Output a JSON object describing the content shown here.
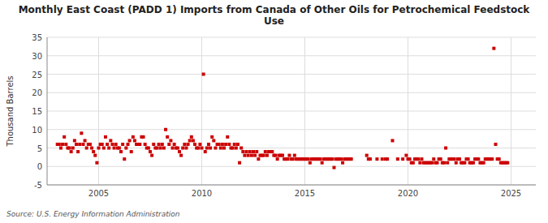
{
  "chart_data": {
    "type": "scatter",
    "title": "Monthly East Coast (PADD 1) Imports from Canada of Other Oils for Petrochemical Feedstock\nUse",
    "ylabel": "Thousand Barrels",
    "source": "Source: U.S. Energy Information Administration",
    "color": "#cc0000",
    "marker": "square",
    "grid": true,
    "xlim": [
      2002.5,
      2026.2
    ],
    "xticks": [
      2005,
      2010,
      2015,
      2020,
      2025
    ],
    "ylim": [
      -5,
      35
    ],
    "yticks": [
      -5,
      0,
      5,
      10,
      15,
      20,
      25,
      30,
      35
    ],
    "x": [
      2003.0,
      2003.083,
      2003.167,
      2003.25,
      2003.333,
      2003.417,
      2003.5,
      2003.583,
      2003.667,
      2003.75,
      2003.833,
      2003.917,
      2004.0,
      2004.083,
      2004.167,
      2004.25,
      2004.333,
      2004.417,
      2004.5,
      2004.583,
      2004.667,
      2004.75,
      2004.833,
      2004.917,
      2005.0,
      2005.083,
      2005.167,
      2005.25,
      2005.333,
      2005.417,
      2005.5,
      2005.583,
      2005.667,
      2005.75,
      2005.833,
      2005.917,
      2006.0,
      2006.083,
      2006.167,
      2006.25,
      2006.333,
      2006.417,
      2006.5,
      2006.583,
      2006.667,
      2006.75,
      2006.833,
      2006.917,
      2007.0,
      2007.083,
      2007.167,
      2007.25,
      2007.333,
      2007.417,
      2007.5,
      2007.583,
      2007.667,
      2007.75,
      2007.833,
      2007.917,
      2008.0,
      2008.083,
      2008.167,
      2008.25,
      2008.333,
      2008.417,
      2008.5,
      2008.583,
      2008.667,
      2008.75,
      2008.833,
      2008.917,
      2009.0,
      2009.083,
      2009.167,
      2009.25,
      2009.333,
      2009.417,
      2009.5,
      2009.583,
      2009.667,
      2009.75,
      2009.833,
      2009.917,
      2010.0,
      2010.083,
      2010.167,
      2010.25,
      2010.333,
      2010.417,
      2010.5,
      2010.583,
      2010.667,
      2010.75,
      2010.833,
      2010.917,
      2011.0,
      2011.083,
      2011.167,
      2011.25,
      2011.333,
      2011.417,
      2011.5,
      2011.583,
      2011.667,
      2011.75,
      2011.833,
      2011.917,
      2012.0,
      2012.083,
      2012.167,
      2012.25,
      2012.333,
      2012.417,
      2012.5,
      2012.583,
      2012.667,
      2012.75,
      2012.833,
      2012.917,
      2013.0,
      2013.083,
      2013.167,
      2013.25,
      2013.333,
      2013.417,
      2013.5,
      2013.583,
      2013.667,
      2013.75,
      2013.833,
      2013.917,
      2014.0,
      2014.083,
      2014.167,
      2014.25,
      2014.333,
      2014.417,
      2014.5,
      2014.583,
      2014.667,
      2014.75,
      2014.833,
      2014.917,
      2015.0,
      2015.083,
      2015.167,
      2015.25,
      2015.333,
      2015.417,
      2015.5,
      2015.583,
      2015.667,
      2015.75,
      2015.833,
      2015.917,
      2016.0,
      2016.083,
      2016.167,
      2016.25,
      2016.333,
      2016.417,
      2016.5,
      2016.583,
      2016.667,
      2016.75,
      2016.833,
      2016.917,
      2017.0,
      2017.083,
      2017.167,
      2017.25,
      2018.0,
      2018.083,
      2018.167,
      2018.5,
      2018.75,
      2018.917,
      2019.0,
      2019.25,
      2019.5,
      2019.75,
      2019.917,
      2020.0,
      2020.083,
      2020.167,
      2020.25,
      2020.333,
      2020.417,
      2020.5,
      2020.583,
      2020.667,
      2020.75,
      2020.833,
      2020.917,
      2021.0,
      2021.083,
      2021.167,
      2021.25,
      2021.333,
      2021.417,
      2021.5,
      2021.583,
      2021.667,
      2021.75,
      2021.833,
      2021.917,
      2022.0,
      2022.083,
      2022.167,
      2022.25,
      2022.333,
      2022.417,
      2022.5,
      2022.583,
      2022.667,
      2022.75,
      2022.833,
      2022.917,
      2023.0,
      2023.083,
      2023.167,
      2023.25,
      2023.333,
      2023.417,
      2023.5,
      2023.583,
      2023.667,
      2023.75,
      2023.833,
      2023.917,
      2024.0,
      2024.083,
      2024.167,
      2024.25,
      2024.333,
      2024.417,
      2024.5,
      2024.583,
      2024.667,
      2024.75,
      2024.833
    ],
    "values": [
      6,
      6,
      5,
      6,
      8,
      6,
      5,
      5,
      4,
      5,
      7,
      6,
      4,
      6,
      9,
      6,
      7,
      5,
      6,
      6,
      5,
      4,
      3,
      1,
      5,
      6,
      6,
      5,
      8,
      6,
      5,
      7,
      6,
      5,
      6,
      5,
      5,
      4,
      6,
      2,
      5,
      6,
      7,
      4,
      8,
      7,
      6,
      6,
      6,
      8,
      8,
      6,
      5,
      5,
      4,
      3,
      6,
      5,
      5,
      6,
      5,
      6,
      5,
      10,
      8,
      6,
      7,
      5,
      6,
      5,
      5,
      4,
      3,
      5,
      6,
      5,
      6,
      7,
      8,
      7,
      6,
      5,
      5,
      6,
      5,
      25,
      4,
      5,
      6,
      5,
      8,
      7,
      5,
      6,
      6,
      5,
      6,
      5,
      6,
      8,
      6,
      5,
      5,
      6,
      5,
      6,
      1,
      5,
      4,
      3,
      4,
      3,
      4,
      3,
      4,
      3,
      4,
      2,
      3,
      3,
      3,
      4,
      3,
      4,
      4,
      4,
      3,
      3,
      2,
      3,
      3,
      3,
      2,
      2,
      2,
      3,
      2,
      2,
      3,
      2,
      2,
      2,
      2,
      2,
      2,
      2,
      2,
      1,
      2,
      2,
      2,
      2,
      2,
      2,
      1,
      2,
      2,
      2,
      2,
      2,
      2,
      -0.3,
      2,
      2,
      2,
      2,
      1,
      2,
      2,
      2,
      2,
      2,
      3,
      2,
      2,
      2,
      2,
      2,
      2,
      7,
      2,
      2,
      3,
      2,
      2,
      1,
      1,
      2,
      2,
      2,
      1,
      2,
      1,
      1,
      1,
      1,
      1,
      1,
      2,
      1,
      1,
      2,
      2,
      1,
      1,
      5,
      1,
      2,
      2,
      2,
      2,
      1,
      2,
      2,
      1,
      1,
      1,
      2,
      2,
      1,
      1,
      1,
      2,
      2,
      2,
      1,
      1,
      1,
      2,
      2,
      2,
      2,
      2,
      32,
      6,
      2,
      2,
      1,
      1,
      1,
      1,
      1
    ]
  }
}
